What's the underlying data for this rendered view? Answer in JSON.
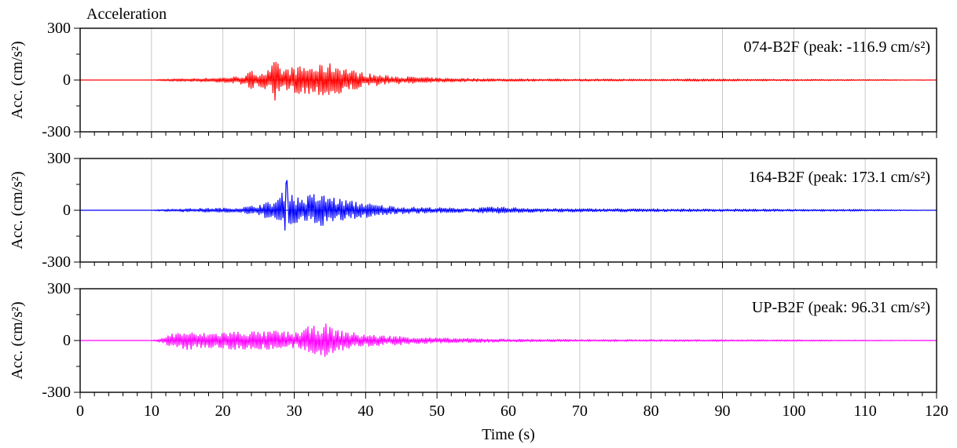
{
  "figure": {
    "title": "Acceleration",
    "xlabel": "Time (s)",
    "xlim": [
      0,
      120
    ],
    "x_ticks": [
      0,
      10,
      20,
      30,
      40,
      50,
      60,
      70,
      80,
      90,
      100,
      110,
      120
    ],
    "x_tick_labels": [
      "0",
      "10",
      "20",
      "30",
      "40",
      "50",
      "60",
      "70",
      "80",
      "90",
      "100",
      "110",
      "120"
    ],
    "y_ticks": [
      300,
      0,
      -300
    ],
    "y_tick_labels": [
      "300",
      "0",
      "-300"
    ],
    "grid": "vertical-at-major-x-ticks"
  },
  "chart_data": [
    {
      "type": "line",
      "ylabel": "Acc. (cm/s²)",
      "ylim": [
        -300,
        300
      ],
      "annotation": "074-B2F (peak: -116.9 cm/s²)",
      "color": "#ff0000",
      "series": [
        {
          "values": [
            {
              "x": 0,
              "y": 0
            },
            {
              "x": 10,
              "y": 0
            },
            {
              "x": 11,
              "y": 4
            },
            {
              "x": 13,
              "y": -7
            },
            {
              "x": 16,
              "y": 9
            },
            {
              "x": 20,
              "y": -14
            },
            {
              "x": 23,
              "y": 25
            },
            {
              "x": 24,
              "y": 55
            },
            {
              "x": 25,
              "y": -45
            },
            {
              "x": 26.5,
              "y": 60
            },
            {
              "x": 27.3,
              "y": -116.9
            },
            {
              "x": 28.3,
              "y": 65
            },
            {
              "x": 29.5,
              "y": -75
            },
            {
              "x": 30.5,
              "y": 78
            },
            {
              "x": 32,
              "y": 85
            },
            {
              "x": 33,
              "y": -80
            },
            {
              "x": 34.7,
              "y": -99
            },
            {
              "x": 36.2,
              "y": 93
            },
            {
              "x": 38,
              "y": -60
            },
            {
              "x": 40,
              "y": 40
            },
            {
              "x": 43,
              "y": -25
            },
            {
              "x": 47,
              "y": 18
            },
            {
              "x": 50,
              "y": -12
            },
            {
              "x": 55,
              "y": 9
            },
            {
              "x": 60,
              "y": -7
            },
            {
              "x": 70,
              "y": 6
            },
            {
              "x": 80,
              "y": -5
            },
            {
              "x": 85,
              "y": 7
            },
            {
              "x": 100,
              "y": -4
            },
            {
              "x": 110,
              "y": 3
            },
            {
              "x": 120,
              "y": 0
            }
          ]
        }
      ]
    },
    {
      "type": "line",
      "ylabel": "Acc. (cm/s²)",
      "ylim": [
        -300,
        300
      ],
      "annotation": "164-B2F (peak: 173.1 cm/s²)",
      "color": "#0000ff",
      "series": [
        {
          "values": [
            {
              "x": 0,
              "y": 0
            },
            {
              "x": 10,
              "y": 0
            },
            {
              "x": 11,
              "y": 5
            },
            {
              "x": 14,
              "y": -9
            },
            {
              "x": 18,
              "y": 12
            },
            {
              "x": 22,
              "y": -14
            },
            {
              "x": 24,
              "y": 25
            },
            {
              "x": 26,
              "y": -45
            },
            {
              "x": 27,
              "y": 50
            },
            {
              "x": 28,
              "y": -85
            },
            {
              "x": 29,
              "y": 173.1
            },
            {
              "x": 30,
              "y": -80
            },
            {
              "x": 31.5,
              "y": 75
            },
            {
              "x": 32.5,
              "y": 100
            },
            {
              "x": 33.5,
              "y": -90
            },
            {
              "x": 35,
              "y": 90
            },
            {
              "x": 36,
              "y": -70
            },
            {
              "x": 38,
              "y": 55
            },
            {
              "x": 40,
              "y": -45
            },
            {
              "x": 41,
              "y": 35
            },
            {
              "x": 45,
              "y": -20
            },
            {
              "x": 50,
              "y": 15
            },
            {
              "x": 55,
              "y": -12
            },
            {
              "x": 58,
              "y": 20
            },
            {
              "x": 65,
              "y": -10
            },
            {
              "x": 75,
              "y": 9
            },
            {
              "x": 90,
              "y": -7
            },
            {
              "x": 100,
              "y": 6
            },
            {
              "x": 110,
              "y": -5
            },
            {
              "x": 120,
              "y": 0
            }
          ]
        }
      ]
    },
    {
      "type": "line",
      "ylabel": "Acc. (cm/s²)",
      "ylim": [
        -300,
        300
      ],
      "annotation": "UP-B2F (peak: 96.31 cm/s²)",
      "color": "#ff00ff",
      "series": [
        {
          "values": [
            {
              "x": 0,
              "y": 0
            },
            {
              "x": 10,
              "y": 0
            },
            {
              "x": 11,
              "y": 10
            },
            {
              "x": 12,
              "y": -25
            },
            {
              "x": 13,
              "y": 45
            },
            {
              "x": 15.4,
              "y": -55
            },
            {
              "x": 16,
              "y": 40
            },
            {
              "x": 18,
              "y": -45
            },
            {
              "x": 20,
              "y": 50
            },
            {
              "x": 22,
              "y": -55
            },
            {
              "x": 24,
              "y": 55
            },
            {
              "x": 26,
              "y": -50
            },
            {
              "x": 27,
              "y": 60
            },
            {
              "x": 28,
              "y": -55
            },
            {
              "x": 30,
              "y": 45
            },
            {
              "x": 31,
              "y": -65
            },
            {
              "x": 32,
              "y": 80
            },
            {
              "x": 34,
              "y": 90
            },
            {
              "x": 34.5,
              "y": 96.31
            },
            {
              "x": 36,
              "y": -60
            },
            {
              "x": 37,
              "y": 60
            },
            {
              "x": 39,
              "y": -40
            },
            {
              "x": 42,
              "y": 30
            },
            {
              "x": 45,
              "y": -25
            },
            {
              "x": 50,
              "y": 15
            },
            {
              "x": 55,
              "y": -12
            },
            {
              "x": 60,
              "y": 8
            },
            {
              "x": 70,
              "y": -6
            },
            {
              "x": 80,
              "y": 5
            },
            {
              "x": 100,
              "y": -4
            },
            {
              "x": 120,
              "y": 0
            }
          ]
        }
      ]
    }
  ]
}
